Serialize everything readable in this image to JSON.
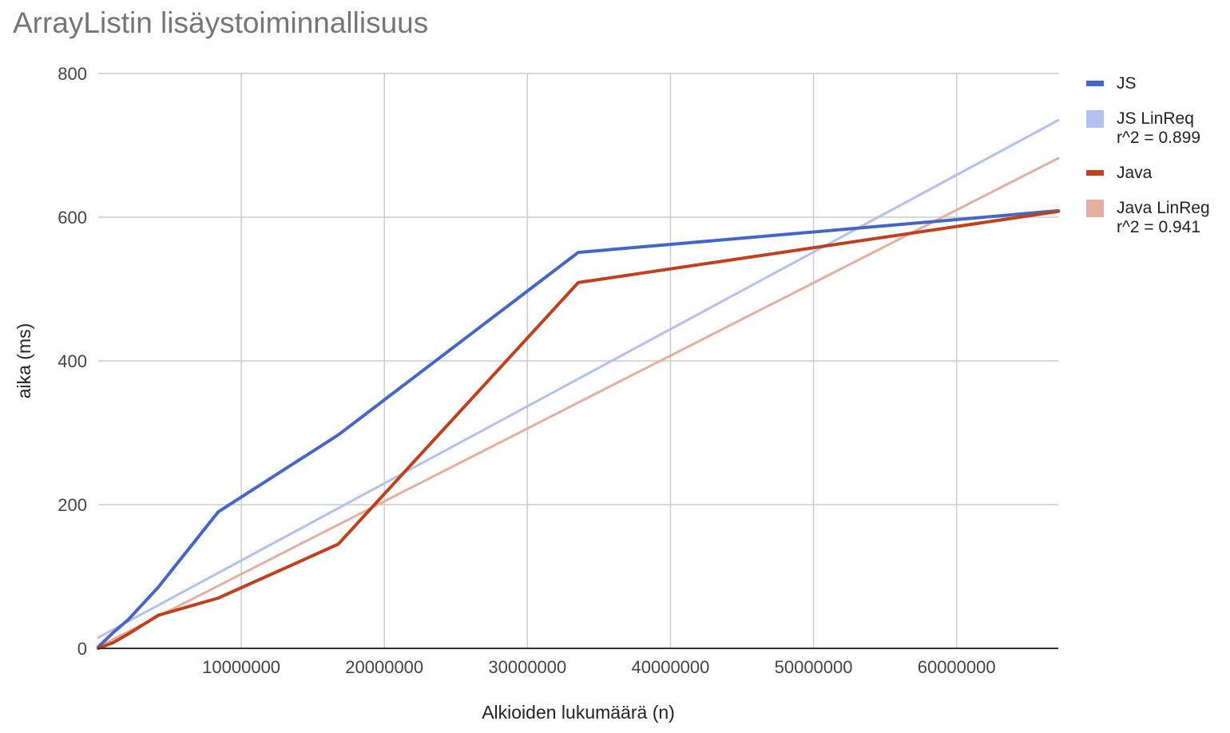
{
  "chart_data": {
    "type": "line",
    "title": "ArrayListin lisäystoiminnallisuus",
    "xlabel": "Alkioiden lukumäärä (n)",
    "ylabel": "aika (ms)",
    "xlim": [
      0,
      67108864
    ],
    "ylim": [
      0,
      800
    ],
    "x_ticks": [
      10000000,
      20000000,
      30000000,
      40000000,
      50000000,
      60000000
    ],
    "x_tick_labels": [
      "10000000",
      "20000000",
      "30000000",
      "40000000",
      "50000000",
      "60000000"
    ],
    "y_ticks": [
      0,
      200,
      400,
      600,
      800
    ],
    "y_tick_labels": [
      "0",
      "200",
      "400",
      "600",
      "800"
    ],
    "grid": true,
    "legend_position": "right",
    "series": [
      {
        "name": "JS",
        "color": "#4466c6",
        "x": [
          0,
          1048576,
          2097152,
          4194304,
          8388608,
          16777216,
          33554432,
          67108864
        ],
        "y": [
          2,
          22,
          40,
          85,
          190,
          297,
          551,
          609
        ]
      },
      {
        "name": "JS LinReq",
        "name2": "r^2 = 0.899",
        "color": "#b3c2ec",
        "kind": "trendline",
        "x": [
          0,
          67108864
        ],
        "y": [
          15,
          735
        ]
      },
      {
        "name": "Java",
        "color": "#c0401e",
        "x": [
          0,
          1048576,
          2097152,
          4194304,
          8388608,
          16777216,
          33554432,
          67108864
        ],
        "y": [
          0,
          8,
          20,
          46,
          70,
          145,
          509,
          608
        ]
      },
      {
        "name": "Java LinReg",
        "name2": "r^2 = 0.941",
        "color": "#e2afa1",
        "kind": "trendline",
        "x": [
          0,
          67108864
        ],
        "y": [
          2,
          682
        ]
      }
    ]
  }
}
